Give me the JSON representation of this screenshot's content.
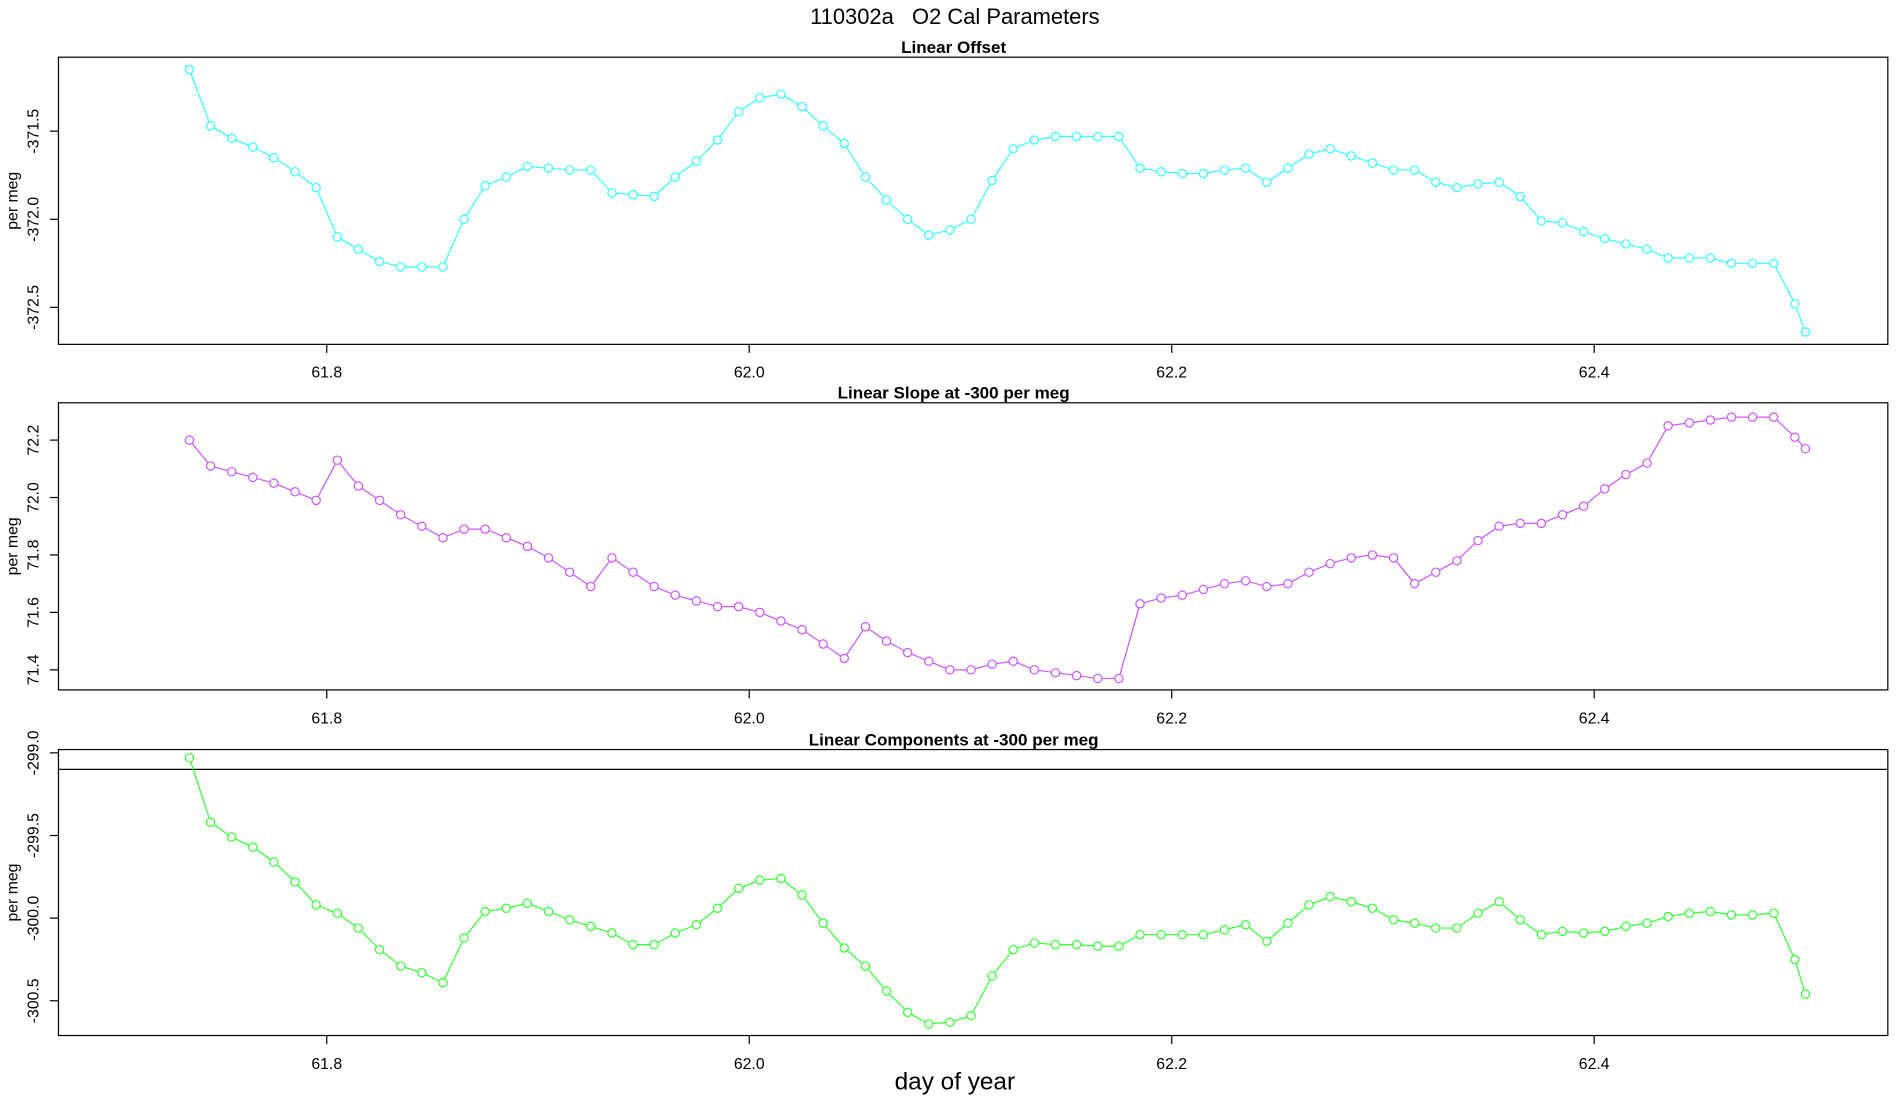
{
  "title": "110302a   O2 Cal Parameters",
  "chart_data": [
    {
      "type": "line",
      "title": "Linear Offset",
      "ylabel": "per meg",
      "color": "#33ffff",
      "marker": "open-circle",
      "x": [
        61.735,
        61.745,
        61.755,
        61.765,
        61.775,
        61.785,
        61.795,
        61.805,
        61.815,
        61.825,
        61.835,
        61.845,
        61.855,
        61.865,
        61.875,
        61.885,
        61.895,
        61.905,
        61.915,
        61.925,
        61.935,
        61.945,
        61.955,
        61.965,
        61.975,
        61.985,
        61.995,
        62.005,
        62.015,
        62.025,
        62.035,
        62.045,
        62.055,
        62.065,
        62.075,
        62.085,
        62.095,
        62.105,
        62.115,
        62.125,
        62.135,
        62.145,
        62.155,
        62.165,
        62.175,
        62.185,
        62.195,
        62.205,
        62.215,
        62.225,
        62.235,
        62.245,
        62.255,
        62.265,
        62.275,
        62.285,
        62.295,
        62.305,
        62.315,
        62.325,
        62.335,
        62.345,
        62.355,
        62.365,
        62.375,
        62.385,
        62.395,
        62.405,
        62.415,
        62.425,
        62.435,
        62.445,
        62.455,
        62.465,
        62.475,
        62.485,
        62.495,
        62.5
      ],
      "values": [
        -371.15,
        -371.47,
        -371.54,
        -371.59,
        -371.65,
        -371.73,
        -371.82,
        -372.1,
        -372.17,
        -372.24,
        -372.27,
        -372.27,
        -372.27,
        -372.0,
        -371.81,
        -371.76,
        -371.7,
        -371.71,
        -371.72,
        -371.72,
        -371.85,
        -371.86,
        -371.87,
        -371.76,
        -371.67,
        -371.55,
        -371.39,
        -371.31,
        -371.29,
        -371.36,
        -371.47,
        -371.57,
        -371.76,
        -371.89,
        -372.0,
        -372.09,
        -372.06,
        -372.0,
        -371.78,
        -371.6,
        -371.55,
        -371.53,
        -371.53,
        -371.53,
        -371.53,
        -371.71,
        -371.73,
        -371.74,
        -371.74,
        -371.72,
        -371.71,
        -371.79,
        -371.71,
        -371.63,
        -371.6,
        -371.64,
        -371.68,
        -371.72,
        -371.72,
        -371.79,
        -371.82,
        -371.8,
        -371.79,
        -371.87,
        -372.01,
        -372.02,
        -372.07,
        -372.11,
        -372.14,
        -372.17,
        -372.22,
        -372.22,
        -372.22,
        -372.25,
        -372.25,
        -372.25,
        -372.48,
        -372.64
      ],
      "xlim": [
        61.673,
        62.539
      ],
      "xticks": [
        61.8,
        {
          "value": 62,
          "label": "62.0"
        },
        62.2,
        62.4
      ],
      "ylim": [
        -372.71,
        -371.08
      ],
      "yticks": [
        -371.5,
        {
          "value": -372,
          "label": "-372.0"
        },
        -372.5
      ]
    },
    {
      "type": "line",
      "title": "Linear Slope at -300 per meg",
      "ylabel": "per meg",
      "color": "#cc55ff",
      "marker": "open-circle",
      "x": [
        61.735,
        61.745,
        61.755,
        61.765,
        61.775,
        61.785,
        61.795,
        61.805,
        61.815,
        61.825,
        61.835,
        61.845,
        61.855,
        61.865,
        61.875,
        61.885,
        61.895,
        61.905,
        61.915,
        61.925,
        61.935,
        61.945,
        61.955,
        61.965,
        61.975,
        61.985,
        61.995,
        62.005,
        62.015,
        62.025,
        62.035,
        62.045,
        62.055,
        62.065,
        62.075,
        62.085,
        62.095,
        62.105,
        62.115,
        62.125,
        62.135,
        62.145,
        62.155,
        62.165,
        62.175,
        62.185,
        62.195,
        62.205,
        62.215,
        62.225,
        62.235,
        62.245,
        62.255,
        62.265,
        62.275,
        62.285,
        62.295,
        62.305,
        62.315,
        62.325,
        62.335,
        62.345,
        62.355,
        62.365,
        62.375,
        62.385,
        62.395,
        62.405,
        62.415,
        62.425,
        62.435,
        62.445,
        62.455,
        62.465,
        62.475,
        62.485,
        62.495,
        62.5
      ],
      "values": [
        72.2,
        72.11,
        72.09,
        72.07,
        72.05,
        72.02,
        71.99,
        72.13,
        72.04,
        71.99,
        71.94,
        71.9,
        71.86,
        71.89,
        71.89,
        71.86,
        71.83,
        71.79,
        71.74,
        71.69,
        71.79,
        71.74,
        71.69,
        71.66,
        71.64,
        71.62,
        71.62,
        71.6,
        71.57,
        71.54,
        71.49,
        71.44,
        71.55,
        71.5,
        71.46,
        71.43,
        71.4,
        71.4,
        71.42,
        71.43,
        71.4,
        71.39,
        71.38,
        71.37,
        71.37,
        71.63,
        71.65,
        71.66,
        71.68,
        71.7,
        71.71,
        71.69,
        71.7,
        71.74,
        71.77,
        71.79,
        71.8,
        71.79,
        71.7,
        71.74,
        71.78,
        71.85,
        71.9,
        71.91,
        71.91,
        71.94,
        71.97,
        72.03,
        72.08,
        72.12,
        72.25,
        72.26,
        72.27,
        72.28,
        72.28,
        72.28,
        72.21,
        72.17
      ],
      "xlim": [
        61.673,
        62.539
      ],
      "xticks": [
        61.8,
        {
          "value": 62,
          "label": "62.0"
        },
        62.2,
        62.4
      ],
      "ylim": [
        71.33,
        72.33
      ],
      "yticks": [
        72.2,
        {
          "value": 72,
          "label": "72.0"
        },
        71.8,
        71.6,
        71.4
      ]
    },
    {
      "type": "line",
      "title": "Linear Components at -300 per meg",
      "ylabel": "per meg",
      "xlabel": "day of year",
      "color": "#33ff33",
      "marker": "open-circle",
      "hline": -299.1,
      "x": [
        61.735,
        61.745,
        61.755,
        61.765,
        61.775,
        61.785,
        61.795,
        61.805,
        61.815,
        61.825,
        61.835,
        61.845,
        61.855,
        61.865,
        61.875,
        61.885,
        61.895,
        61.905,
        61.915,
        61.925,
        61.935,
        61.945,
        61.955,
        61.965,
        61.975,
        61.985,
        61.995,
        62.005,
        62.015,
        62.025,
        62.035,
        62.045,
        62.055,
        62.065,
        62.075,
        62.085,
        62.095,
        62.105,
        62.115,
        62.125,
        62.135,
        62.145,
        62.155,
        62.165,
        62.175,
        62.185,
        62.195,
        62.205,
        62.215,
        62.225,
        62.235,
        62.245,
        62.255,
        62.265,
        62.275,
        62.285,
        62.295,
        62.305,
        62.315,
        62.325,
        62.335,
        62.345,
        62.355,
        62.365,
        62.375,
        62.385,
        62.395,
        62.405,
        62.415,
        62.425,
        62.435,
        62.445,
        62.455,
        62.465,
        62.475,
        62.485,
        62.495,
        62.5
      ],
      "values": [
        -299.03,
        -299.42,
        -299.51,
        -299.57,
        -299.66,
        -299.78,
        -299.92,
        -299.97,
        -300.06,
        -300.19,
        -300.29,
        -300.33,
        -300.39,
        -300.12,
        -299.96,
        -299.94,
        -299.91,
        -299.96,
        -300.01,
        -300.05,
        -300.09,
        -300.16,
        -300.16,
        -300.09,
        -300.04,
        -299.94,
        -299.82,
        -299.77,
        -299.76,
        -299.86,
        -300.03,
        -300.18,
        -300.29,
        -300.44,
        -300.57,
        -300.64,
        -300.63,
        -300.59,
        -300.35,
        -300.19,
        -300.15,
        -300.16,
        -300.16,
        -300.17,
        -300.17,
        -300.1,
        -300.1,
        -300.1,
        -300.1,
        -300.07,
        -300.04,
        -300.14,
        -300.03,
        -299.92,
        -299.87,
        -299.9,
        -299.94,
        -300.01,
        -300.03,
        -300.06,
        -300.06,
        -299.97,
        -299.9,
        -300.01,
        -300.1,
        -300.08,
        -300.09,
        -300.08,
        -300.05,
        -300.03,
        -299.99,
        -299.97,
        -299.96,
        -299.98,
        -299.98,
        -299.97,
        -300.25,
        -300.46
      ],
      "xlim": [
        61.673,
        62.539
      ],
      "xticks": [
        61.8,
        {
          "value": 62,
          "label": "62.0"
        },
        62.2,
        62.4
      ],
      "ylim": [
        -300.71,
        -298.98
      ],
      "yticks": [
        {
          "value": -299,
          "label": "-299.0"
        },
        -299.5,
        {
          "value": -300,
          "label": "-300.0"
        },
        -300.5
      ]
    }
  ]
}
